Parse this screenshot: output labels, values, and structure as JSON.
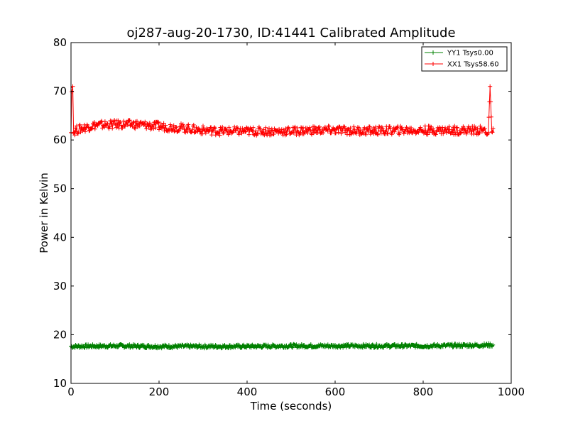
{
  "chart_data": {
    "type": "line",
    "title": "oj287-aug-20-1730, ID:41441 Calibrated Amplitude",
    "xlabel": "Time (seconds)",
    "ylabel": "Power in Kelvin",
    "xlim": [
      0,
      1000
    ],
    "ylim": [
      10,
      80
    ],
    "xticks": [
      0,
      200,
      400,
      600,
      800,
      1000
    ],
    "yticks": [
      10,
      20,
      30,
      40,
      50,
      60,
      70,
      80
    ],
    "grid": false,
    "legend_position": "top-right",
    "marker": "+",
    "series": [
      {
        "name": "YY1 Tsys0.00",
        "color": "#008000",
        "x": [
          0,
          100,
          200,
          300,
          400,
          500,
          600,
          700,
          800,
          900,
          955,
          960
        ],
        "y": [
          17.6,
          17.7,
          17.6,
          17.6,
          17.6,
          17.7,
          17.7,
          17.7,
          17.7,
          17.8,
          17.9,
          17.8
        ]
      },
      {
        "name": "XX1 Tsys58.60",
        "color": "#ff0000",
        "x": [
          0,
          2,
          4,
          6,
          10,
          50,
          100,
          150,
          200,
          250,
          300,
          350,
          400,
          450,
          500,
          550,
          600,
          650,
          700,
          750,
          800,
          850,
          900,
          940,
          948,
          952,
          956,
          960
        ],
        "y": [
          61.5,
          70.8,
          71.0,
          61.5,
          62.0,
          63.0,
          63.2,
          63.2,
          62.8,
          62.5,
          62.0,
          61.8,
          61.8,
          61.8,
          61.8,
          62.0,
          62.0,
          61.9,
          61.9,
          62.0,
          62.0,
          62.0,
          62.0,
          62.0,
          61.5,
          71.0,
          61.6,
          61.6
        ]
      }
    ]
  }
}
